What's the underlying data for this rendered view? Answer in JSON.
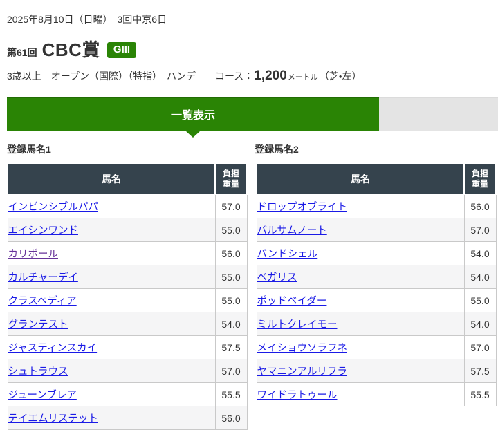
{
  "header": {
    "date_line": "2025年8月10日（日曜）　3回中京6日",
    "race_number": "第61回",
    "race_name": "CBC賞",
    "grade": "GIII",
    "conditions": "3歳以上　オープン（国際）（特指）　ハンデ",
    "course_label": "コース：",
    "course_distance": "1,200",
    "course_unit": "メートル",
    "course_detail": "（芝・左）"
  },
  "tab_bar": {
    "active_tab": "一覧表示"
  },
  "colors": {
    "accent_green": "#2a8405",
    "table_header_bg": "#35434d",
    "link_blue": "#1a1ae6",
    "link_visited_purple": "#663399",
    "row_alt_bg": "#f5f5f6",
    "tab_rest_gray": "#e4e4e4"
  },
  "tables": [
    {
      "title": "登録馬名1",
      "columns": {
        "name": "馬名",
        "weight_line1": "負担",
        "weight_line2": "重量"
      },
      "rows": [
        {
          "name": "インビンシブルパパ",
          "weight": "57.0"
        },
        {
          "name": "エイシンワンド",
          "weight": "55.0"
        },
        {
          "name": "カリボール",
          "weight": "56.0",
          "visited": true
        },
        {
          "name": "カルチャーデイ",
          "weight": "55.0"
        },
        {
          "name": "クラスペディア",
          "weight": "55.0"
        },
        {
          "name": "グランテスト",
          "weight": "54.0"
        },
        {
          "name": "ジャスティンスカイ",
          "weight": "57.5"
        },
        {
          "name": "シュトラウス",
          "weight": "57.0"
        },
        {
          "name": "ジューンブレア",
          "weight": "55.5"
        },
        {
          "name": "テイエムリステット",
          "weight": "56.0"
        }
      ]
    },
    {
      "title": "登録馬名2",
      "columns": {
        "name": "馬名",
        "weight_line1": "負担",
        "weight_line2": "重量"
      },
      "rows": [
        {
          "name": "ドロップオブライト",
          "weight": "56.0"
        },
        {
          "name": "バルサムノート",
          "weight": "57.0"
        },
        {
          "name": "バンドシェル",
          "weight": "54.0"
        },
        {
          "name": "ベガリス",
          "weight": "54.0"
        },
        {
          "name": "ポッドベイダー",
          "weight": "55.0"
        },
        {
          "name": "ミルトクレイモー",
          "weight": "54.0"
        },
        {
          "name": "メイショウソラフネ",
          "weight": "57.0"
        },
        {
          "name": "ヤマニンアルリフラ",
          "weight": "57.5"
        },
        {
          "name": "ワイドラトゥール",
          "weight": "55.5"
        }
      ]
    }
  ]
}
